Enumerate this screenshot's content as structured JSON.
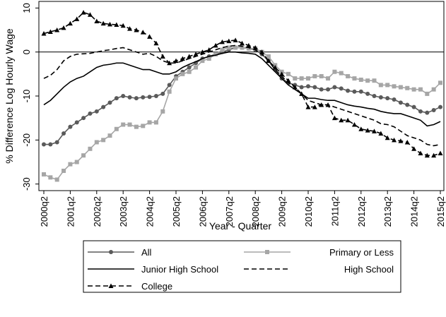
{
  "chart_data": {
    "type": "line",
    "x_label": "Year - Quarter",
    "y_label": "% Difference Log Hourly Wage",
    "categories": [
      "2000q2",
      null,
      null,
      null,
      "2001q2",
      null,
      null,
      null,
      "2002q2",
      null,
      null,
      null,
      "2003q2",
      null,
      null,
      null,
      "2004q2",
      null,
      null,
      null,
      "2005q2",
      null,
      null,
      null,
      "2006q2",
      null,
      null,
      null,
      "2007q2",
      null,
      null,
      null,
      "2008q2",
      null,
      null,
      null,
      "2009q2",
      null,
      null,
      null,
      "2010q2",
      null,
      null,
      null,
      "2011q2",
      null,
      null,
      null,
      "2012q2",
      null,
      null,
      null,
      "2013q2",
      null,
      null,
      null,
      "2014q2",
      null,
      null,
      null,
      "2015q2"
    ],
    "ylim": [
      -31.5,
      11.5
    ],
    "yticks": [
      10,
      0,
      -10,
      -20,
      -30
    ],
    "reference_line": 0,
    "series": [
      {
        "name": "All",
        "color": "#5a5a5a",
        "marker": "circle",
        "dash": "none",
        "values": [
          -21,
          -21,
          -20.5,
          -18.5,
          -17,
          -16,
          -15,
          -14,
          -13.5,
          -12.5,
          -11.5,
          -10.5,
          -10,
          -10.3,
          -10.5,
          -10.3,
          -10.2,
          -10,
          -9.5,
          -7.5,
          -5.5,
          -4.5,
          -3.5,
          -2.5,
          -1.5,
          -1,
          -0.5,
          0,
          0.5,
          1,
          1,
          0.8,
          0.5,
          -0.5,
          -2,
          -4,
          -6,
          -7,
          -7.5,
          -8,
          -7.8,
          -8,
          -8.5,
          -8.5,
          -8,
          -8.3,
          -8.8,
          -9,
          -9,
          -9.5,
          -10,
          -10.3,
          -10.5,
          -10.8,
          -11.5,
          -12,
          -12.5,
          -13.5,
          -13.8,
          -13.2,
          -12.5
        ]
      },
      {
        "name": "Primary or Less",
        "color": "#a6a6a6",
        "marker": "square",
        "dash": "none",
        "values": [
          -27.8,
          -28.5,
          -29,
          -27,
          -25.5,
          -25,
          -23.5,
          -22,
          -20.5,
          -20,
          -19,
          -17.5,
          -16.5,
          -16.5,
          -17,
          -16.8,
          -16,
          -16,
          -13.5,
          -9,
          -6,
          -5,
          -4.5,
          -3.5,
          -2,
          -1.5,
          -0.5,
          0.5,
          1,
          1,
          1,
          0.8,
          0.8,
          0,
          -1,
          -3,
          -4.5,
          -5,
          -6,
          -6,
          -6,
          -5.5,
          -5.5,
          -6,
          -4.5,
          -4.8,
          -5.5,
          -6,
          -6.3,
          -6.5,
          -6.5,
          -7.5,
          -7.5,
          -7.8,
          -8,
          -8.2,
          -8.5,
          -8.5,
          -9.5,
          -8.5,
          -7
        ]
      },
      {
        "name": "Junior High School",
        "color": "#000000",
        "marker": "none",
        "dash": "none",
        "values": [
          -12,
          -11,
          -9.5,
          -8,
          -6.8,
          -6,
          -5.5,
          -4.5,
          -3.5,
          -3,
          -2.8,
          -2.5,
          -2.5,
          -3,
          -3.5,
          -4,
          -4,
          -4.5,
          -5,
          -5,
          -4.5,
          -3.5,
          -2.8,
          -2.2,
          -1.5,
          -1,
          -0.7,
          -0.3,
          0,
          0,
          -0.2,
          -0.3,
          -0.5,
          -1.5,
          -3,
          -4.5,
          -6,
          -7.5,
          -8.5,
          -9.5,
          -10.5,
          -10.5,
          -10.8,
          -11,
          -11,
          -11.5,
          -12,
          -12.3,
          -12.5,
          -12.8,
          -13,
          -13.5,
          -13.8,
          -14,
          -14,
          -14.5,
          -15,
          -15.5,
          -16.8,
          -16.5,
          -15.8
        ]
      },
      {
        "name": "High School",
        "color": "#000000",
        "marker": "none",
        "dash": "7,4",
        "values": [
          -6,
          -5.3,
          -4,
          -2,
          -1,
          -0.5,
          -0.4,
          -0.3,
          0,
          0.3,
          0.5,
          0.8,
          1,
          0.5,
          0,
          -0.5,
          -0.3,
          -1,
          -2,
          -2.5,
          -2.5,
          -2,
          -1.5,
          -1,
          -0.5,
          0,
          0.5,
          1,
          1.3,
          1.5,
          1.3,
          1,
          0.5,
          -0.5,
          -2,
          -4,
          -5.5,
          -7,
          -8,
          -9.5,
          -11,
          -11.5,
          -12,
          -12,
          -12.5,
          -13,
          -13.5,
          -14,
          -14.5,
          -15,
          -15.5,
          -16.3,
          -16.5,
          -17,
          -18,
          -19,
          -19.5,
          -20,
          -21,
          -21.3,
          -21
        ]
      },
      {
        "name": "College",
        "color": "#000000",
        "marker": "triangle",
        "dash": "7,4",
        "values": [
          4.2,
          4.6,
          5,
          5.5,
          6.5,
          7.5,
          9,
          8.5,
          7,
          6.5,
          6.3,
          6.2,
          6,
          5.3,
          5,
          4.5,
          3.5,
          2,
          -1,
          -2.5,
          -2,
          -1.5,
          -1,
          -0.5,
          0,
          0.5,
          1.5,
          2.3,
          2.5,
          2.7,
          2,
          1.5,
          1,
          0,
          -2,
          -3.5,
          -5,
          -6.5,
          -8,
          -9.5,
          -12.5,
          -12.5,
          -12,
          -12,
          -15,
          -15.5,
          -15.5,
          -16.5,
          -17.5,
          -17.8,
          -18,
          -18.5,
          -19.5,
          -20,
          -20.2,
          -20.5,
          -22,
          -23,
          -23.5,
          -23.5,
          -23
        ]
      }
    ]
  }
}
